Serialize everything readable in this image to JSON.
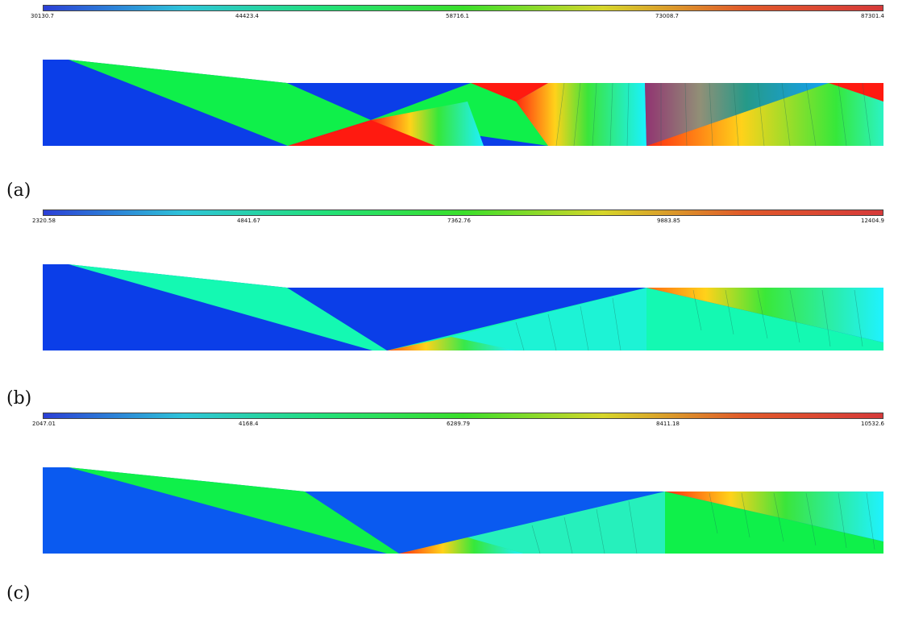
{
  "colormap": [
    "#2b3fd6",
    "#2ec4d9",
    "#22e07a",
    "#3adf2a",
    "#d6d62a",
    "#e05a2a",
    "#d63a3a"
  ],
  "panels": [
    {
      "label": "(a)",
      "colorbar_ticks": [
        "30130.7",
        "44423.4",
        "58716.1",
        "73008.7",
        "87301.4"
      ]
    },
    {
      "label": "(b)",
      "colorbar_ticks": [
        "2320.58",
        "4841.67",
        "7362.76",
        "9883.85",
        "12404.9"
      ]
    },
    {
      "label": "(c)",
      "colorbar_ticks": [
        "2047.01",
        "4168.4",
        "6289.79",
        "8411.18",
        "10532.6"
      ]
    }
  ]
}
